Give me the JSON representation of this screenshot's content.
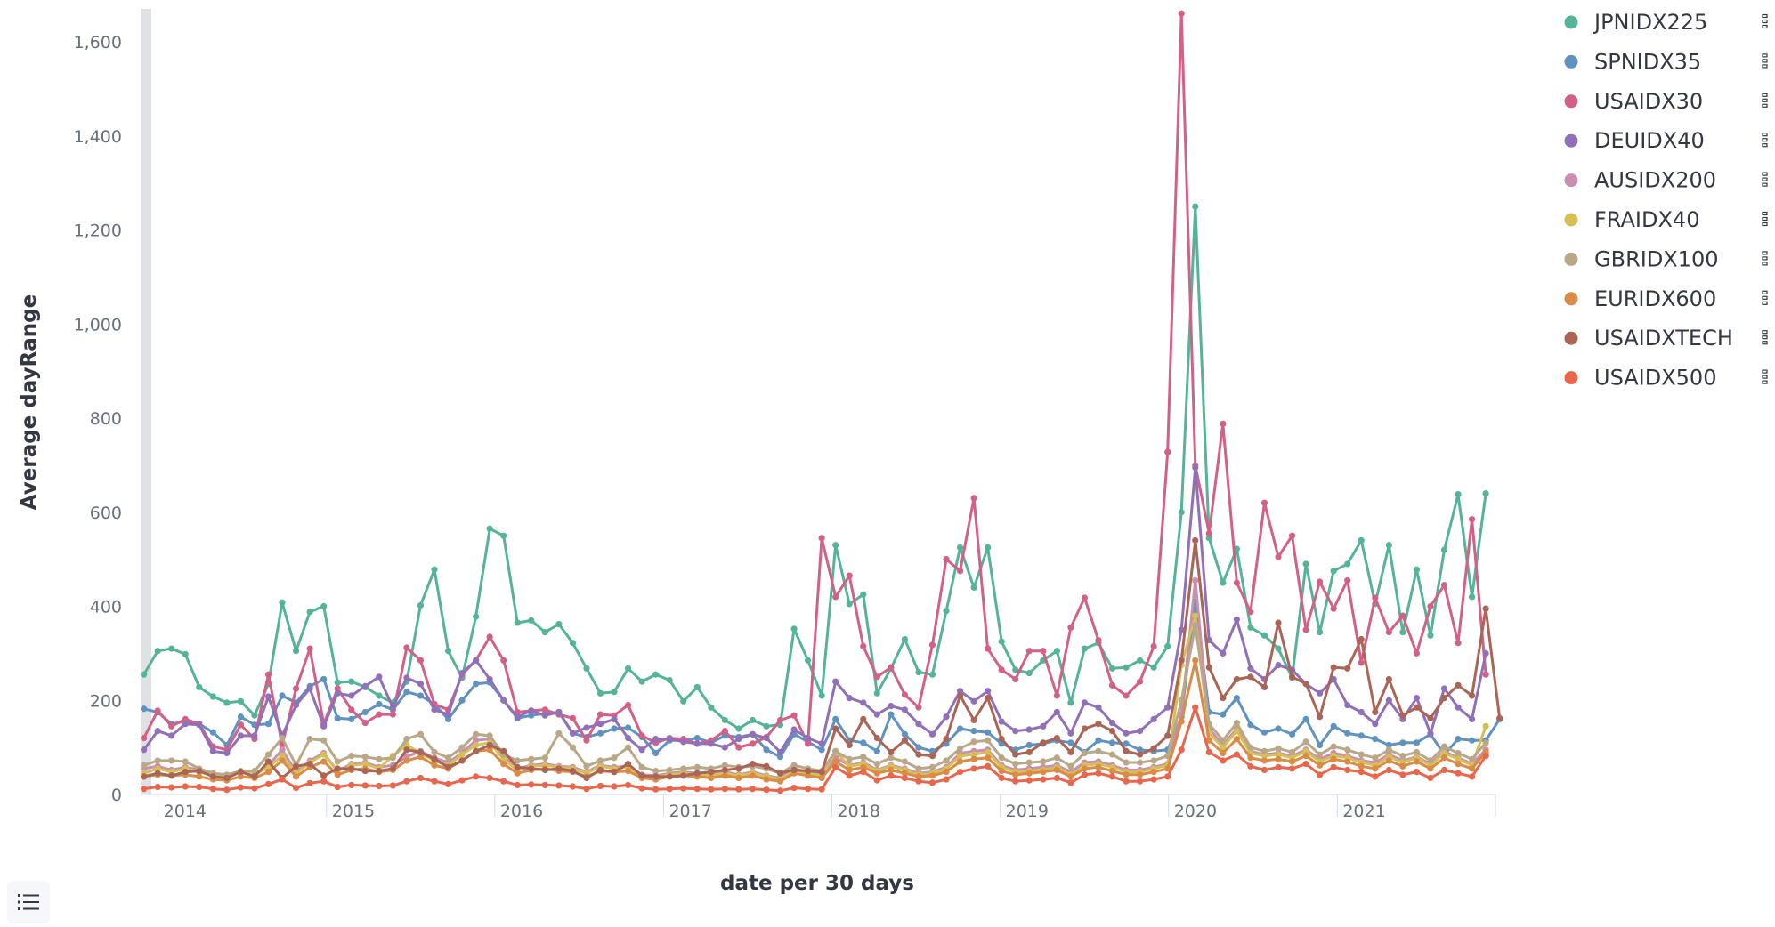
{
  "chart_data": {
    "type": "line",
    "title": "",
    "xlabel": "date per 30 days",
    "ylabel": "Average dayRange",
    "ylim": [
      0,
      1670
    ],
    "xlim": [
      "2013-11-24",
      "2021-12-10"
    ],
    "y_ticks": [
      0,
      200,
      400,
      600,
      800,
      1000,
      1200,
      1400,
      1600
    ],
    "y_tick_labels": [
      "0",
      "200",
      "400",
      "600",
      "800",
      "1,000",
      "1,200",
      "1,400",
      "1,600"
    ],
    "x_ticks": [
      "2014-01-01",
      "2015-01-01",
      "2016-01-01",
      "2017-01-01",
      "2018-01-01",
      "2019-01-01",
      "2020-01-01",
      "2021-01-01"
    ],
    "x_tick_labels": [
      "2014",
      "2015",
      "2016",
      "2017",
      "2018",
      "2019",
      "2020",
      "2021"
    ],
    "x_start": "2013-12-01",
    "x_interval_days": 30,
    "grid": false,
    "legend_position": "top-right",
    "series": [
      {
        "name": "JPNIDX225",
        "color": "#54b399",
        "values": [
          255,
          305,
          310,
          298,
          228,
          208,
          195,
          198,
          168,
          235,
          408,
          305,
          388,
          400,
          238,
          240,
          228,
          210,
          195,
          240,
          402,
          478,
          305,
          248,
          378,
          565,
          550,
          365,
          370,
          345,
          362,
          322,
          268,
          215,
          218,
          268,
          240,
          255,
          243,
          198,
          228,
          185,
          158,
          140,
          158,
          145,
          148,
          352,
          285,
          210,
          530,
          405,
          425,
          215,
          268,
          330,
          260,
          255,
          390,
          525,
          440,
          525,
          325,
          265,
          258,
          285,
          305,
          195,
          310,
          322,
          268,
          270,
          285,
          270,
          315,
          600,
          1250,
          545,
          450,
          522,
          355,
          338,
          310,
          248,
          490,
          345,
          475,
          490,
          540,
          405,
          530,
          345,
          478,
          338,
          520,
          638,
          420,
          640
        ]
      },
      {
        "name": "SPNIDX35",
        "color": "#6092c0",
        "values": [
          182,
          175,
          150,
          155,
          150,
          132,
          105,
          165,
          148,
          150,
          210,
          195,
          230,
          245,
          162,
          160,
          175,
          192,
          180,
          218,
          210,
          192,
          160,
          200,
          235,
          238,
          200,
          162,
          168,
          172,
          175,
          130,
          122,
          130,
          140,
          142,
          122,
          88,
          115,
          115,
          120,
          110,
          125,
          122,
          128,
          95,
          80,
          128,
          112,
          95,
          160,
          115,
          110,
          92,
          170,
          128,
          100,
          92,
          108,
          140,
          135,
          132,
          108,
          95,
          105,
          108,
          115,
          110,
          90,
          115,
          110,
          108,
          95,
          92,
          95,
          165,
          410,
          175,
          170,
          205,
          148,
          132,
          140,
          128,
          160,
          105,
          145,
          130,
          125,
          118,
          105,
          110,
          110,
          128,
          85,
          118,
          115,
          115,
          160
        ]
      },
      {
        "name": "USAIDX30",
        "color": "#d36086",
        "values": [
          120,
          178,
          145,
          160,
          150,
          102,
          95,
          148,
          118,
          255,
          105,
          225,
          310,
          150,
          225,
          180,
          152,
          170,
          170,
          312,
          285,
          192,
          180,
          255,
          285,
          335,
          285,
          175,
          178,
          180,
          170,
          162,
          115,
          170,
          168,
          190,
          125,
          110,
          120,
          118,
          108,
          115,
          135,
          100,
          108,
          122,
          158,
          168,
          108,
          545,
          420,
          465,
          315,
          250,
          270,
          212,
          185,
          318,
          500,
          475,
          630,
          310,
          265,
          245,
          305,
          305,
          210,
          355,
          418,
          328,
          232,
          210,
          240,
          315,
          728,
          1660,
          700,
          555,
          788,
          450,
          388,
          620,
          505,
          550,
          350,
          452,
          395,
          455,
          280,
          418,
          345,
          380,
          300,
          400,
          445,
          322,
          585,
          255
        ]
      },
      {
        "name": "DEUIDX40",
        "color": "#9170b8",
        "values": [
          95,
          135,
          125,
          150,
          148,
          92,
          88,
          125,
          125,
          208,
          125,
          190,
          225,
          145,
          215,
          210,
          230,
          250,
          185,
          248,
          235,
          180,
          170,
          258,
          285,
          245,
          200,
          165,
          178,
          168,
          175,
          130,
          142,
          150,
          160,
          120,
          95,
          118,
          118,
          112,
          108,
          108,
          100,
          118,
          128,
          120,
          90,
          138,
          120,
          108,
          240,
          205,
          195,
          170,
          188,
          180,
          150,
          128,
          165,
          220,
          198,
          220,
          155,
          135,
          138,
          145,
          175,
          130,
          195,
          185,
          152,
          130,
          135,
          160,
          185,
          350,
          695,
          328,
          300,
          372,
          268,
          245,
          275,
          265,
          235,
          215,
          245,
          190,
          175,
          150,
          200,
          160,
          205,
          130,
          225,
          185,
          160,
          300
        ]
      },
      {
        "name": "AUSIDX200",
        "color": "#ca8eae",
        "values": [
          55,
          60,
          52,
          58,
          52,
          42,
          38,
          48,
          42,
          62,
          95,
          48,
          72,
          88,
          50,
          65,
          68,
          58,
          62,
          80,
          92,
          78,
          68,
          88,
          115,
          118,
          80,
          55,
          62,
          65,
          60,
          58,
          48,
          62,
          58,
          60,
          42,
          40,
          45,
          48,
          45,
          42,
          48,
          42,
          48,
          40,
          35,
          55,
          48,
          42,
          78,
          62,
          68,
          52,
          62,
          55,
          45,
          48,
          58,
          88,
          92,
          95,
          62,
          52,
          55,
          58,
          62,
          48,
          68,
          70,
          62,
          52,
          52,
          58,
          65,
          170,
          455,
          140,
          105,
          140,
          92,
          85,
          88,
          82,
          95,
          75,
          88,
          82,
          72,
          68,
          85,
          72,
          80,
          65,
          92,
          78,
          65,
          95
        ]
      },
      {
        "name": "FRAIDX40",
        "color": "#d6bf57",
        "values": [
          45,
          55,
          48,
          55,
          48,
          40,
          38,
          48,
          42,
          58,
          82,
          45,
          68,
          85,
          50,
          62,
          65,
          55,
          82,
          105,
          88,
          72,
          62,
          85,
          105,
          110,
          75,
          52,
          60,
          62,
          58,
          55,
          45,
          60,
          55,
          58,
          40,
          38,
          42,
          45,
          42,
          40,
          45,
          40,
          45,
          38,
          32,
          52,
          45,
          40,
          92,
          60,
          65,
          50,
          60,
          52,
          42,
          45,
          55,
          82,
          85,
          90,
          58,
          48,
          50,
          52,
          58,
          42,
          62,
          65,
          58,
          48,
          48,
          55,
          62,
          275,
          380,
          130,
          100,
          135,
          88,
          82,
          85,
          78,
          92,
          70,
          82,
          78,
          68,
          62,
          80,
          68,
          78,
          62,
          88,
          75,
          62,
          145
        ]
      },
      {
        "name": "GBRIDX100",
        "color": "#b9a888",
        "values": [
          62,
          72,
          72,
          70,
          55,
          45,
          42,
          50,
          50,
          85,
          120,
          62,
          118,
          115,
          70,
          82,
          80,
          75,
          78,
          118,
          128,
          90,
          78,
          100,
          128,
          125,
          85,
          72,
          75,
          78,
          130,
          100,
          60,
          72,
          78,
          100,
          58,
          50,
          52,
          55,
          58,
          55,
          62,
          58,
          60,
          55,
          45,
          62,
          55,
          50,
          92,
          75,
          80,
          65,
          78,
          70,
          55,
          58,
          72,
          98,
          112,
          115,
          78,
          65,
          68,
          70,
          78,
          60,
          88,
          92,
          85,
          68,
          68,
          72,
          82,
          200,
          360,
          150,
          115,
          152,
          100,
          92,
          98,
          90,
          112,
          85,
          102,
          95,
          85,
          78,
          95,
          82,
          90,
          72,
          102,
          88,
          75,
          110
        ]
      },
      {
        "name": "EURIDX600",
        "color": "#da8b45",
        "values": [
          38,
          42,
          40,
          42,
          38,
          32,
          30,
          38,
          35,
          48,
          72,
          38,
          58,
          70,
          42,
          52,
          55,
          48,
          52,
          72,
          80,
          62,
          55,
          72,
          92,
          95,
          65,
          45,
          52,
          55,
          50,
          48,
          38,
          50,
          48,
          50,
          35,
          32,
          38,
          40,
          38,
          35,
          40,
          35,
          40,
          32,
          28,
          45,
          40,
          35,
          70,
          52,
          58,
          45,
          52,
          45,
          38,
          40,
          48,
          70,
          75,
          78,
          50,
          42,
          45,
          48,
          52,
          38,
          55,
          58,
          50,
          42,
          42,
          48,
          55,
          155,
          285,
          115,
          88,
          118,
          78,
          72,
          75,
          70,
          82,
          62,
          75,
          70,
          60,
          55,
          72,
          60,
          70,
          55,
          78,
          65,
          55,
          90
        ]
      },
      {
        "name": "USAIDXTECH",
        "color": "#aa6556",
        "values": [
          38,
          45,
          40,
          48,
          50,
          38,
          35,
          48,
          38,
          70,
          35,
          60,
          65,
          40,
          55,
          55,
          50,
          50,
          55,
          95,
          90,
          75,
          58,
          72,
          92,
          105,
          92,
          58,
          55,
          52,
          55,
          50,
          35,
          52,
          48,
          65,
          40,
          38,
          38,
          40,
          45,
          48,
          52,
          55,
          65,
          60,
          45,
          52,
          50,
          48,
          140,
          105,
          160,
          120,
          90,
          115,
          85,
          82,
          118,
          210,
          158,
          205,
          118,
          85,
          90,
          110,
          120,
          90,
          140,
          150,
          135,
          92,
          85,
          98,
          125,
          285,
          540,
          270,
          205,
          245,
          250,
          228,
          365,
          250,
          235,
          165,
          270,
          268,
          330,
          175,
          245,
          168,
          185,
          162,
          205,
          232,
          210,
          395,
          162
        ]
      },
      {
        "name": "USAIDX500",
        "color": "#e7664c",
        "values": [
          12,
          16,
          15,
          17,
          16,
          12,
          10,
          15,
          13,
          22,
          32,
          14,
          24,
          28,
          16,
          20,
          19,
          18,
          19,
          28,
          35,
          28,
          22,
          30,
          38,
          35,
          28,
          20,
          21,
          20,
          19,
          17,
          12,
          18,
          17,
          20,
          13,
          11,
          12,
          13,
          12,
          11,
          12,
          11,
          12,
          10,
          8,
          14,
          12,
          11,
          58,
          40,
          48,
          30,
          40,
          35,
          28,
          25,
          32,
          48,
          55,
          60,
          35,
          28,
          30,
          32,
          35,
          25,
          42,
          45,
          38,
          28,
          28,
          32,
          38,
          95,
          185,
          90,
          72,
          85,
          60,
          52,
          58,
          55,
          65,
          42,
          58,
          52,
          48,
          38,
          52,
          42,
          48,
          35,
          52,
          45,
          38,
          82
        ]
      }
    ]
  },
  "ui": {
    "legend_toggle_icon": "list-icon"
  }
}
